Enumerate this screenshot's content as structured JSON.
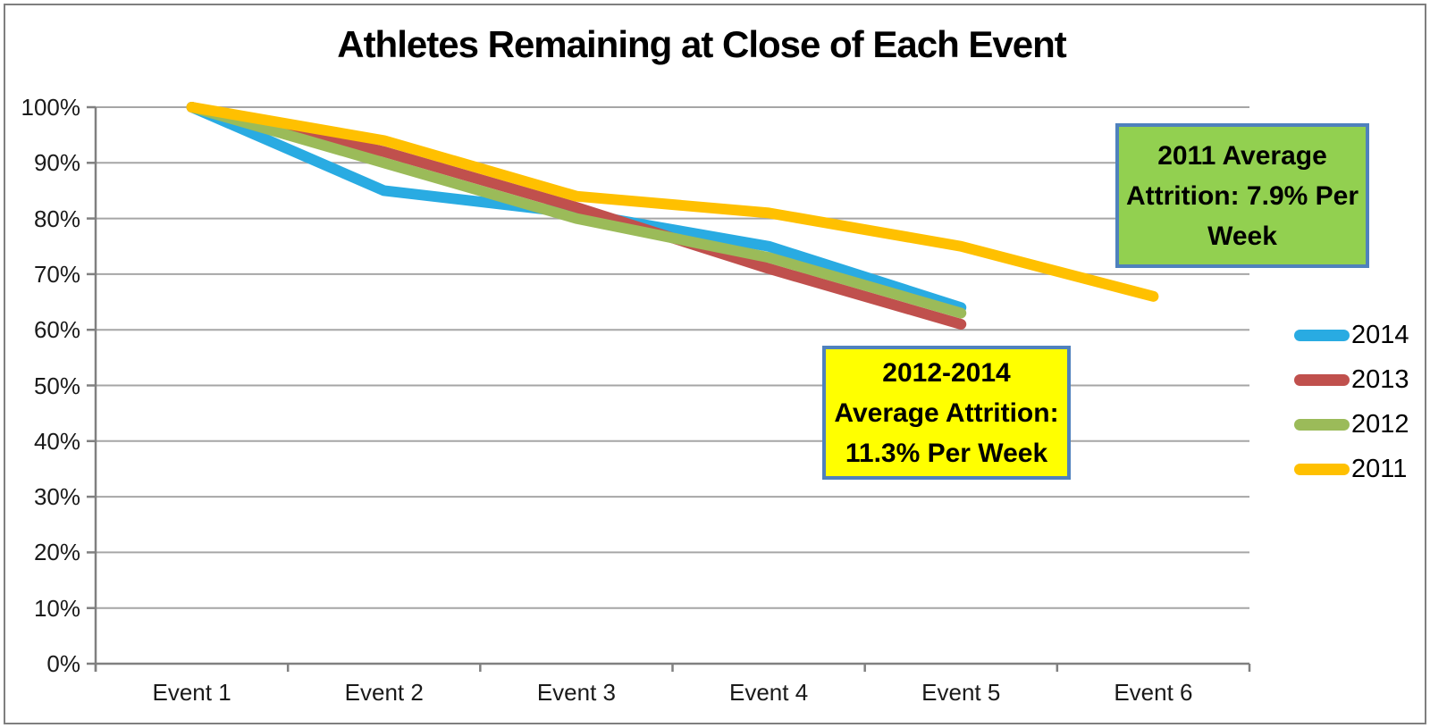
{
  "title": "Athletes Remaining at Close of Each Event",
  "chart_data": {
    "type": "line",
    "categories": [
      "Event 1",
      "Event 2",
      "Event 3",
      "Event 4",
      "Event 5",
      "Event 6"
    ],
    "series": [
      {
        "name": "2014",
        "color": "#29ABE2",
        "values": [
          100,
          85,
          81,
          75,
          64,
          null
        ]
      },
      {
        "name": "2013",
        "color": "#C0504D",
        "values": [
          100,
          92,
          82,
          71,
          61,
          null
        ]
      },
      {
        "name": "2012",
        "color": "#9BBB59",
        "values": [
          100,
          90,
          80,
          73,
          63,
          null
        ]
      },
      {
        "name": "2011",
        "color": "#FFC000",
        "values": [
          100,
          94,
          84,
          81,
          75,
          66
        ]
      }
    ],
    "ylim": [
      0,
      100
    ],
    "ytick_step": 10,
    "ytick_labels": [
      "0%",
      "10%",
      "20%",
      "30%",
      "40%",
      "50%",
      "60%",
      "70%",
      "80%",
      "90%",
      "100%"
    ],
    "ytick_suffix": "%",
    "grid": "horizontal",
    "gridline_color": "#A6A6A6",
    "axis_color": "#808080",
    "legend_position": "right",
    "legend_order": [
      "2014",
      "2013",
      "2012",
      "2011"
    ]
  },
  "annotations": {
    "attrition_2011": {
      "lines": [
        "2011 Average",
        "Attrition: 7.9% Per",
        "Week"
      ],
      "fill": "#92D050",
      "border": "#4F81BD"
    },
    "attrition_2012_2014": {
      "lines": [
        "2012-2014",
        "Average Attrition:",
        "11.3% Per Week"
      ],
      "fill": "#FFFF00",
      "border": "#4F81BD"
    }
  }
}
